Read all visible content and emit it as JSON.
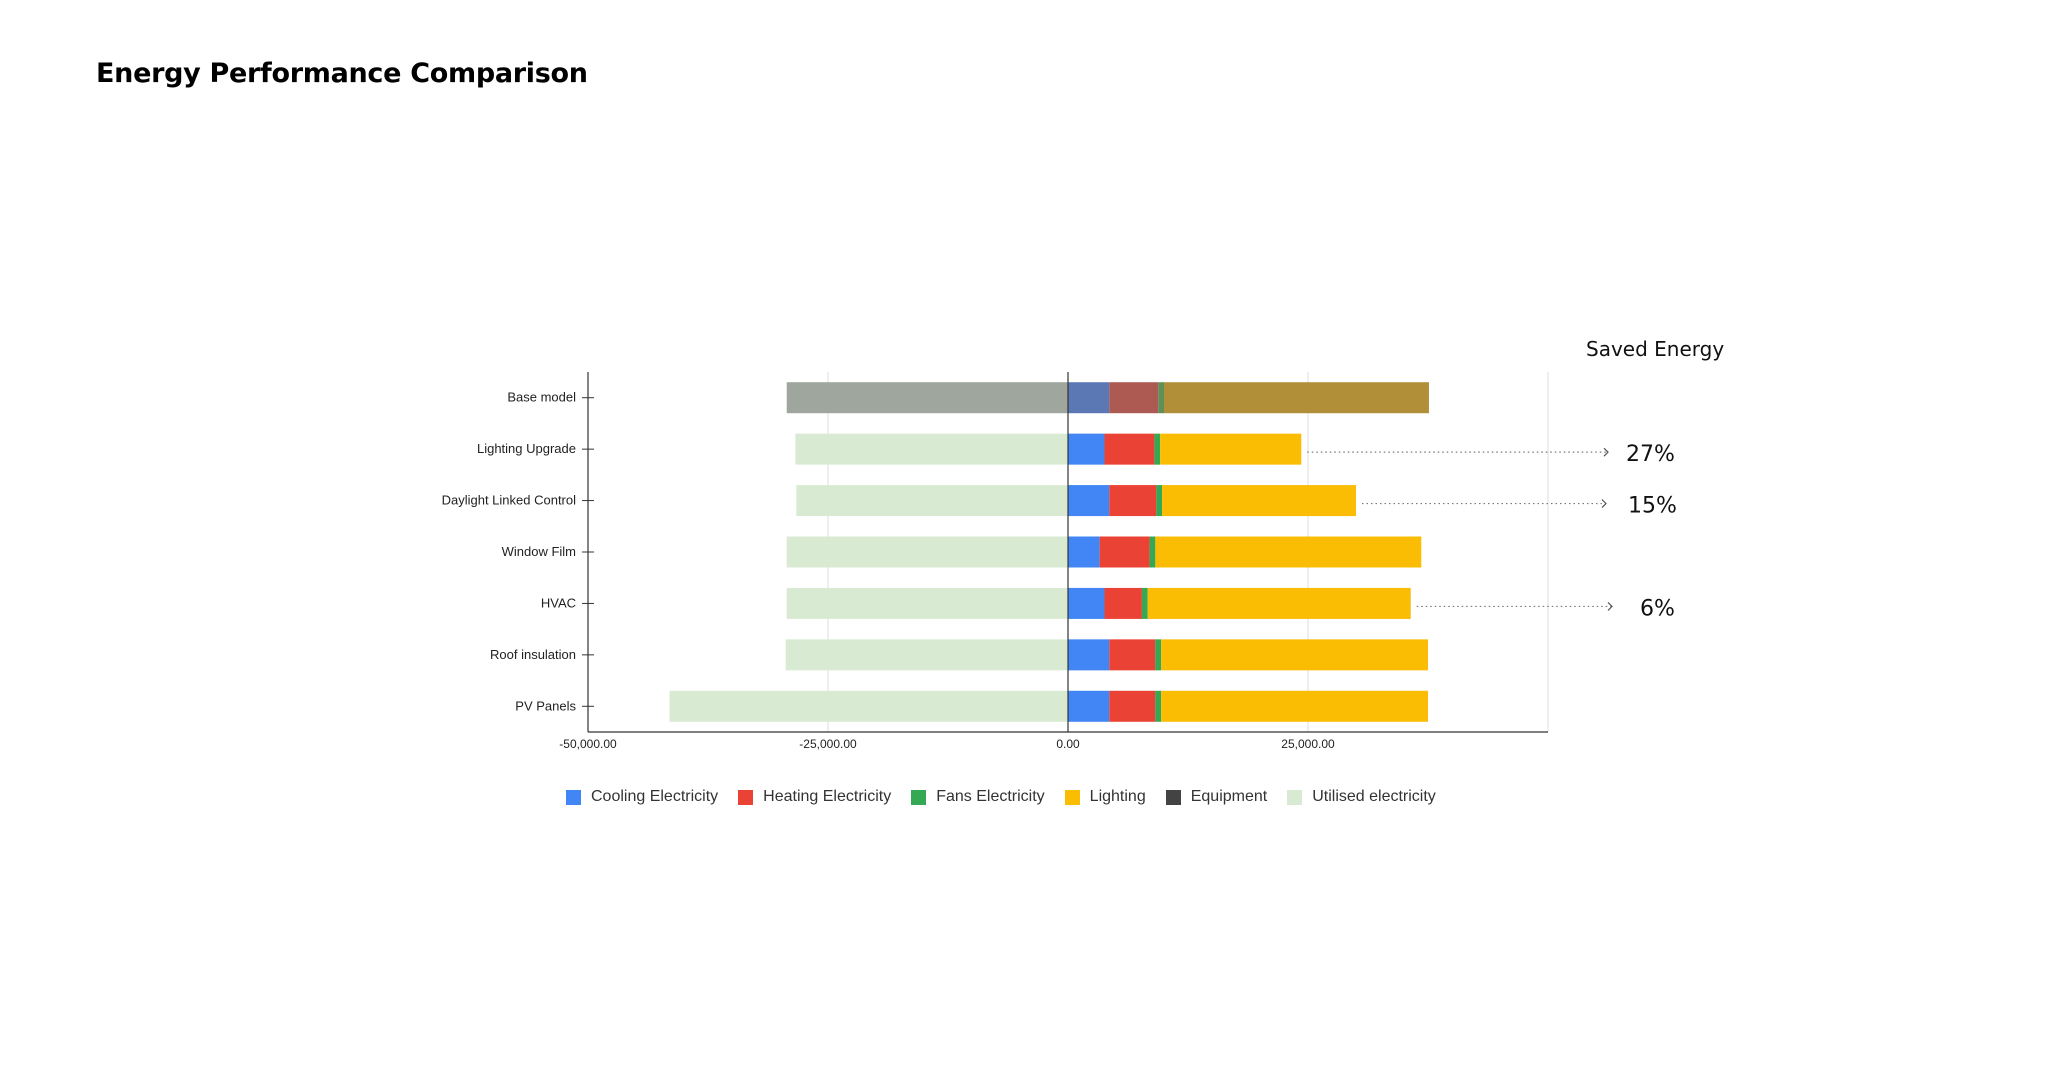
{
  "page": {
    "title": "Energy Performance Comparison"
  },
  "chart_data": {
    "type": "bar",
    "orientation": "horizontal",
    "stacked": true,
    "categories": [
      "Base model",
      "Lighting Upgrade",
      "Daylight Linked Control",
      "Window Film",
      "HVAC",
      "Roof insulation",
      "PV Panels"
    ],
    "series": [
      {
        "name": "Cooling Electricity",
        "color": "#4285F4",
        "values": [
          4300,
          3800,
          4300,
          3300,
          3800,
          4300,
          4300
        ]
      },
      {
        "name": "Heating Electricity",
        "color": "#EA4335",
        "values": [
          5100,
          5200,
          4900,
          5200,
          3900,
          4800,
          4800
        ]
      },
      {
        "name": "Fans Electricity",
        "color": "#34A853",
        "values": [
          600,
          600,
          600,
          600,
          600,
          600,
          600
        ]
      },
      {
        "name": "Lighting",
        "color": "#FBBC04",
        "values": [
          27600,
          14700,
          20200,
          27700,
          27400,
          27800,
          27800
        ]
      },
      {
        "name": "Equipment",
        "color": "#434343",
        "values": [
          0,
          0,
          0,
          0,
          0,
          0,
          0
        ]
      },
      {
        "name": "Utilised electricity",
        "color": "#D9EAD3",
        "values": [
          -29300,
          -28400,
          -28300,
          -29300,
          -29300,
          -29400,
          -41500
        ]
      }
    ],
    "highlight_category": "Base model",
    "highlight_colors": {
      "Cooling Electricity": "#5B78B5",
      "Heating Electricity": "#AC5A52",
      "Fans Electricity": "#5E8F59",
      "Lighting": "#B08F38",
      "Utilised electricity": "#9EA69E"
    },
    "xlim": [
      -50000,
      50000
    ],
    "xticks": [
      -50000,
      -25000,
      0,
      25000
    ],
    "xtick_labels": [
      "-50,000.00",
      "-25,000.00",
      "0.00",
      "25,000.00"
    ],
    "grid": true,
    "legend_position": "bottom",
    "side_title": "Saved Energy",
    "annotations": [
      {
        "category": "Lighting Upgrade",
        "label": "27%"
      },
      {
        "category": "Daylight Linked Control",
        "label": "15%"
      },
      {
        "category": "HVAC",
        "label": "6%"
      }
    ]
  }
}
